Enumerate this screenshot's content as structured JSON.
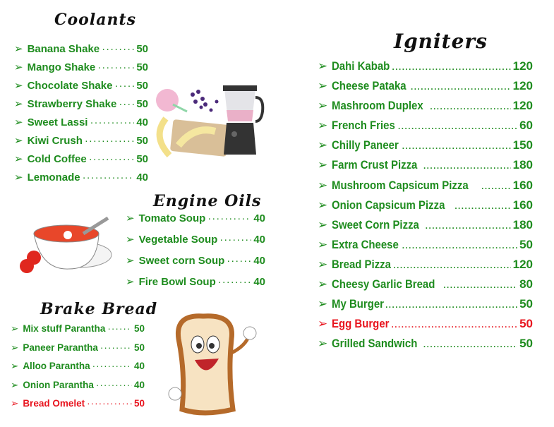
{
  "colors": {
    "item": "#1e8c1e",
    "highlight": "#e8141e",
    "heading": "#111111"
  },
  "coolants": {
    "title": "Coolants",
    "items": [
      {
        "name": "Banana Shake",
        "price": "50"
      },
      {
        "name": "Mango Shake",
        "price": "50"
      },
      {
        "name": "Chocolate  Shake",
        "price": "50"
      },
      {
        "name": "Strawberry  Shake",
        "price": "50"
      },
      {
        "name": "Sweet Lassi",
        "price": "40"
      },
      {
        "name": "Kiwi Crush",
        "price": "50"
      },
      {
        "name": "Cold Coffee",
        "price": "50"
      },
      {
        "name": "Lemonade",
        "price": "40"
      }
    ]
  },
  "engine_oils": {
    "title": "Engine Oils",
    "items": [
      {
        "name": "Tomato Soup",
        "price": "40"
      },
      {
        "name": "Vegetable Soup",
        "price": "40"
      },
      {
        "name": "Sweet corn Soup",
        "price": "40"
      },
      {
        "name": "Fire Bowl Soup",
        "price": "40"
      }
    ]
  },
  "brake_bread": {
    "title": "Brake Bread",
    "items": [
      {
        "name": "Mix stuff Parantha",
        "price": "50"
      },
      {
        "name": "Paneer Parantha",
        "price": "50"
      },
      {
        "name": "Alloo Parantha",
        "price": "40"
      },
      {
        "name": "Onion Parantha",
        "price": "40"
      },
      {
        "name": "Bread Omelet",
        "price": "50",
        "highlight": true
      }
    ]
  },
  "igniters": {
    "title": "Igniters",
    "items": [
      {
        "name": "Dahi  Kabab",
        "price": "120"
      },
      {
        "name": "Cheese Pataka",
        "price": "120"
      },
      {
        "name": "Mashroom Duplex",
        "price": "120"
      },
      {
        "name": "French  Fries",
        "price": "60"
      },
      {
        "name": "Chilly Paneer",
        "price": "150"
      },
      {
        "name": "Farm Crust Pizza",
        "price": "180"
      },
      {
        "name": "Mushroom Capsicum Pizza",
        "price": "160"
      },
      {
        "name": "Onion Capsicum Pizza",
        "price": "160"
      },
      {
        "name": "Sweet Corn Pizza",
        "price": "180"
      },
      {
        "name": "Extra Cheese",
        "price": "50"
      },
      {
        "name": "Bread Pizza",
        "price": "120"
      },
      {
        "name": "Cheesy Garlic Bread",
        "price": "80"
      },
      {
        "name": "My Burger",
        "price": "50"
      },
      {
        "name": "Egg Burger",
        "price": "50",
        "highlight": true
      },
      {
        "name": "Grilled Sandwich",
        "price": "50"
      }
    ]
  },
  "icons": {
    "bullet": "arrow-right-icon",
    "illustrations": [
      "blender-smoothie-illustration",
      "tomato-soup-illustration",
      "bread-mascot-illustration"
    ]
  }
}
